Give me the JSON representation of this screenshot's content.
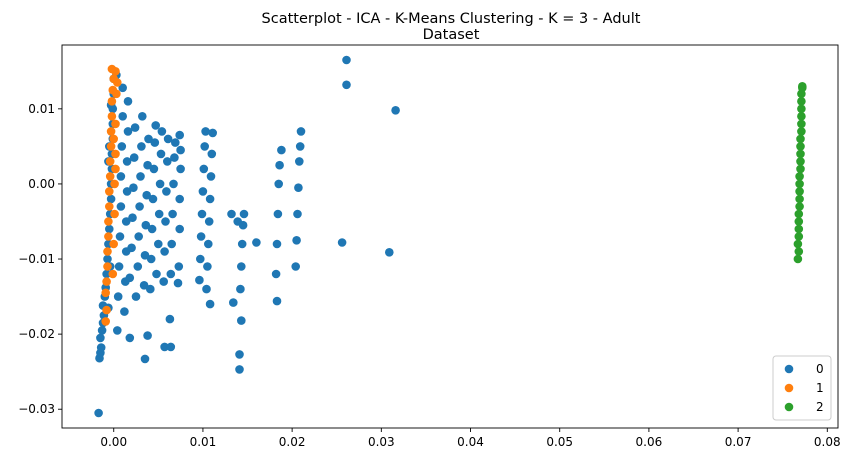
{
  "chart_data": {
    "type": "scatter",
    "title_line1": "Scatterplot - ICA - K-Means Clustering - K = 3 - Adult",
    "title_line2": "Dataset",
    "xlabel": "",
    "ylabel": "",
    "xlim": [
      -0.0058,
      0.0812
    ],
    "ylim": [
      -0.0325,
      0.0185
    ],
    "x_ticks": [
      0.0,
      0.01,
      0.02,
      0.03,
      0.04,
      0.05,
      0.06,
      0.07,
      0.08
    ],
    "x_tick_labels": [
      "0.00",
      "0.01",
      "0.02",
      "0.03",
      "0.04",
      "0.05",
      "0.06",
      "0.07",
      "0.08"
    ],
    "y_ticks": [
      -0.03,
      -0.02,
      -0.01,
      0.0,
      0.01
    ],
    "y_tick_labels": [
      "−0.03",
      "−0.02",
      "−0.01",
      "0.00",
      "0.01"
    ],
    "grid": false,
    "legend_position": "bottom-right",
    "series": [
      {
        "name": "0",
        "color": "#1f77b4",
        "points": [
          [
            -0.0017,
            -0.0305
          ],
          [
            -0.0016,
            -0.0232
          ],
          [
            -0.0015,
            -0.0225
          ],
          [
            -0.0014,
            -0.0218
          ],
          [
            -0.0015,
            -0.0205
          ],
          [
            -0.0013,
            -0.0195
          ],
          [
            -0.0012,
            -0.0185
          ],
          [
            -0.0011,
            -0.0175
          ],
          [
            -0.0012,
            -0.0162
          ],
          [
            -0.001,
            -0.015
          ],
          [
            -0.0009,
            -0.0138
          ],
          [
            -0.0008,
            -0.012
          ],
          [
            -0.0007,
            -0.01
          ],
          [
            -0.0006,
            -0.008
          ],
          [
            -0.0005,
            -0.006
          ],
          [
            -0.0004,
            -0.004
          ],
          [
            -0.0003,
            -0.002
          ],
          [
            -0.0003,
            0.0
          ],
          [
            -0.0002,
            0.002
          ],
          [
            -0.0002,
            0.004
          ],
          [
            -0.0001,
            0.006
          ],
          [
            -0.0001,
            0.008
          ],
          [
            -0.0001,
            0.01
          ],
          [
            0.0,
            0.012
          ],
          [
            0.0,
            0.014
          ],
          [
            -0.0006,
            0.003
          ],
          [
            -0.0005,
            0.005
          ],
          [
            -0.0004,
            -0.011
          ],
          [
            -0.0006,
            -0.0165
          ],
          [
            -0.0003,
            0.0105
          ],
          [
            0.0004,
            -0.0195
          ],
          [
            0.0005,
            -0.015
          ],
          [
            0.0006,
            -0.011
          ],
          [
            0.0007,
            -0.007
          ],
          [
            0.0008,
            -0.003
          ],
          [
            0.0008,
            0.001
          ],
          [
            0.0009,
            0.005
          ],
          [
            0.001,
            0.009
          ],
          [
            0.001,
            0.0128
          ],
          [
            0.0003,
            0.0145
          ],
          [
            0.0012,
            -0.017
          ],
          [
            0.0013,
            -0.013
          ],
          [
            0.0014,
            -0.009
          ],
          [
            0.0014,
            -0.005
          ],
          [
            0.0015,
            -0.001
          ],
          [
            0.0015,
            0.003
          ],
          [
            0.0016,
            0.007
          ],
          [
            0.0016,
            0.011
          ],
          [
            0.0018,
            -0.0205
          ],
          [
            0.0018,
            -0.0125
          ],
          [
            0.002,
            -0.0085
          ],
          [
            0.0021,
            -0.0045
          ],
          [
            0.0022,
            -0.0005
          ],
          [
            0.0023,
            0.0035
          ],
          [
            0.0024,
            0.0075
          ],
          [
            0.0025,
            -0.015
          ],
          [
            0.0027,
            -0.011
          ],
          [
            0.0028,
            -0.007
          ],
          [
            0.0029,
            -0.003
          ],
          [
            0.003,
            0.001
          ],
          [
            0.0031,
            0.005
          ],
          [
            0.0032,
            0.009
          ],
          [
            0.0034,
            -0.0135
          ],
          [
            0.0035,
            -0.0095
          ],
          [
            0.0036,
            -0.0055
          ],
          [
            0.0037,
            -0.0015
          ],
          [
            0.0038,
            0.0025
          ],
          [
            0.0039,
            0.006
          ],
          [
            0.0035,
            -0.0233
          ],
          [
            0.0038,
            -0.0202
          ],
          [
            0.0041,
            -0.014
          ],
          [
            0.0042,
            -0.01
          ],
          [
            0.0043,
            -0.006
          ],
          [
            0.0044,
            -0.002
          ],
          [
            0.0045,
            0.002
          ],
          [
            0.0046,
            0.0055
          ],
          [
            0.0047,
            0.0078
          ],
          [
            0.0048,
            -0.012
          ],
          [
            0.005,
            -0.008
          ],
          [
            0.0051,
            -0.004
          ],
          [
            0.0052,
            0.0
          ],
          [
            0.0053,
            0.004
          ],
          [
            0.0054,
            0.007
          ],
          [
            0.0056,
            -0.013
          ],
          [
            0.0057,
            -0.009
          ],
          [
            0.0058,
            -0.005
          ],
          [
            0.0059,
            -0.001
          ],
          [
            0.006,
            0.003
          ],
          [
            0.0061,
            0.006
          ],
          [
            0.0057,
            -0.0217
          ],
          [
            0.0064,
            -0.0217
          ],
          [
            0.0063,
            -0.018
          ],
          [
            0.0064,
            -0.012
          ],
          [
            0.0065,
            -0.008
          ],
          [
            0.0066,
            -0.004
          ],
          [
            0.0067,
            0.0
          ],
          [
            0.0068,
            0.0035
          ],
          [
            0.0069,
            0.0055
          ],
          [
            0.0072,
            -0.0132
          ],
          [
            0.0073,
            -0.011
          ],
          [
            0.0074,
            -0.006
          ],
          [
            0.0074,
            -0.002
          ],
          [
            0.0075,
            0.002
          ],
          [
            0.0075,
            0.0045
          ],
          [
            0.0074,
            0.0065
          ],
          [
            0.0096,
            -0.0128
          ],
          [
            0.0097,
            -0.01
          ],
          [
            0.0098,
            -0.007
          ],
          [
            0.0099,
            -0.004
          ],
          [
            0.01,
            -0.001
          ],
          [
            0.0101,
            0.002
          ],
          [
            0.0102,
            0.005
          ],
          [
            0.0103,
            0.007
          ],
          [
            0.0104,
            -0.014
          ],
          [
            0.0105,
            -0.011
          ],
          [
            0.0106,
            -0.008
          ],
          [
            0.0107,
            -0.005
          ],
          [
            0.0108,
            -0.002
          ],
          [
            0.0109,
            0.001
          ],
          [
            0.011,
            0.004
          ],
          [
            0.0111,
            0.0068
          ],
          [
            0.0108,
            -0.016
          ],
          [
            0.0132,
            -0.004
          ],
          [
            0.0134,
            -0.0158
          ],
          [
            0.0139,
            -0.005
          ],
          [
            0.0141,
            -0.0247
          ],
          [
            0.0141,
            -0.0227
          ],
          [
            0.0143,
            -0.0182
          ],
          [
            0.0142,
            -0.014
          ],
          [
            0.0143,
            -0.011
          ],
          [
            0.0144,
            -0.008
          ],
          [
            0.0145,
            -0.0055
          ],
          [
            0.0146,
            -0.004
          ],
          [
            0.016,
            -0.0078
          ],
          [
            0.0183,
            -0.0156
          ],
          [
            0.0182,
            -0.012
          ],
          [
            0.0183,
            -0.008
          ],
          [
            0.0184,
            -0.004
          ],
          [
            0.0185,
            0.0
          ],
          [
            0.0186,
            0.0025
          ],
          [
            0.0188,
            0.0045
          ],
          [
            0.0204,
            -0.011
          ],
          [
            0.0205,
            -0.0075
          ],
          [
            0.0206,
            -0.004
          ],
          [
            0.0207,
            -0.0005
          ],
          [
            0.0208,
            0.003
          ],
          [
            0.0209,
            0.005
          ],
          [
            0.021,
            0.007
          ],
          [
            0.0256,
            -0.0078
          ],
          [
            0.0261,
            0.0165
          ],
          [
            0.0261,
            0.0132
          ],
          [
            0.0309,
            -0.0091
          ],
          [
            0.0316,
            0.0098
          ]
        ]
      },
      {
        "name": "1",
        "color": "#ff7f0e",
        "points": [
          [
            -0.0009,
            -0.0183
          ],
          [
            -0.0008,
            -0.0168
          ],
          [
            -0.0009,
            -0.0145
          ],
          [
            -0.0008,
            -0.013
          ],
          [
            -0.0007,
            -0.011
          ],
          [
            -0.0007,
            -0.009
          ],
          [
            -0.0006,
            -0.007
          ],
          [
            -0.0006,
            -0.005
          ],
          [
            -0.0005,
            -0.003
          ],
          [
            -0.0005,
            -0.001
          ],
          [
            -0.0004,
            0.001
          ],
          [
            -0.0004,
            0.003
          ],
          [
            -0.0003,
            0.005
          ],
          [
            -0.0003,
            0.007
          ],
          [
            -0.0002,
            0.009
          ],
          [
            -0.0002,
            0.011
          ],
          [
            -0.0001,
            0.0125
          ],
          [
            0.0,
            0.014
          ],
          [
            -0.0002,
            0.0153
          ],
          [
            0.0002,
            0.015
          ],
          [
            -0.0001,
            -0.012
          ],
          [
            0.0,
            -0.008
          ],
          [
            0.0001,
            -0.004
          ],
          [
            0.0001,
            0.0
          ],
          [
            0.0002,
            0.004
          ],
          [
            0.0002,
            0.008
          ],
          [
            0.0003,
            0.012
          ],
          [
            0.0004,
            0.0135
          ],
          [
            0.0002,
            0.002
          ],
          [
            0.0,
            0.006
          ]
        ]
      },
      {
        "name": "2",
        "color": "#2ca02c",
        "points": [
          [
            0.0767,
            -0.01
          ],
          [
            0.0768,
            -0.009
          ],
          [
            0.0767,
            -0.008
          ],
          [
            0.0768,
            -0.007
          ],
          [
            0.0768,
            -0.006
          ],
          [
            0.0768,
            -0.005
          ],
          [
            0.0768,
            -0.004
          ],
          [
            0.0769,
            -0.003
          ],
          [
            0.0769,
            -0.002
          ],
          [
            0.0769,
            -0.001
          ],
          [
            0.0769,
            0.0
          ],
          [
            0.0769,
            0.001
          ],
          [
            0.077,
            0.002
          ],
          [
            0.077,
            0.003
          ],
          [
            0.077,
            0.004
          ],
          [
            0.077,
            0.005
          ],
          [
            0.077,
            0.006
          ],
          [
            0.0771,
            0.007
          ],
          [
            0.0771,
            0.008
          ],
          [
            0.0771,
            0.009
          ],
          [
            0.0771,
            0.01
          ],
          [
            0.0771,
            0.011
          ],
          [
            0.0771,
            0.012
          ],
          [
            0.0772,
            0.0128
          ],
          [
            0.0772,
            0.013
          ]
        ]
      }
    ]
  }
}
